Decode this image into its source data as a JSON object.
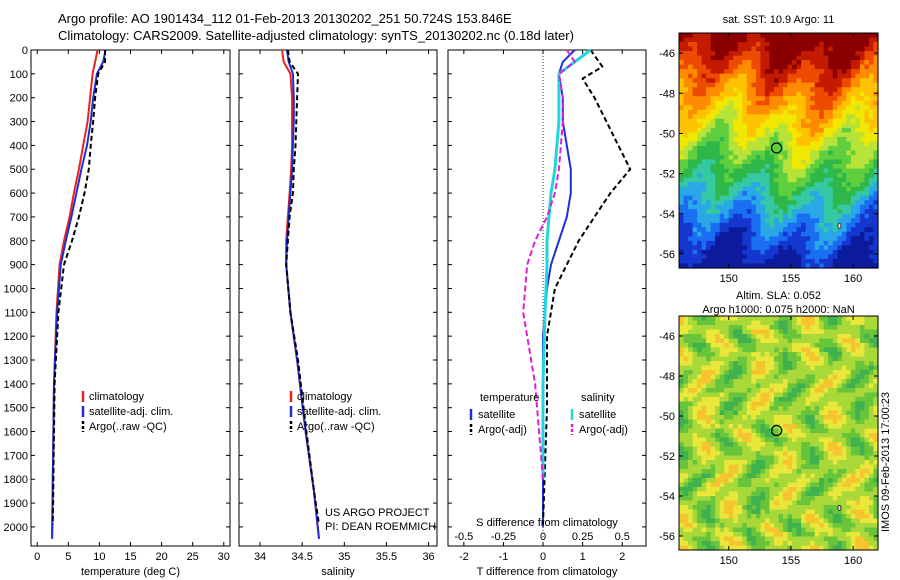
{
  "header": {
    "line1": "Argo profile: AO 1901434_112 01-Feb-2013 20130202_251 50.724S 153.846E",
    "line2": "Climatology: CARS2009. Satellite-adjusted climatology: synTS_20130202.nc (0.18d later)"
  },
  "side_stamp": "IMOS 09-Feb-2013 17:00:23",
  "colors": {
    "climatology": "#e8231a",
    "satellite": "#1f2fd8",
    "argo": "#000000",
    "sal_satellite": "#1fd6e0",
    "sal_argo": "#e01fd6"
  },
  "chart_data": [
    {
      "id": "temperature",
      "type": "line",
      "xlabel": "temperature (deg C)",
      "ylabel": "",
      "xlim": [
        -1,
        31
      ],
      "ylim": [
        2080,
        0
      ],
      "xticks": [
        0,
        5,
        10,
        15,
        20,
        25,
        30
      ],
      "yticks": [
        0,
        100,
        200,
        300,
        400,
        500,
        600,
        700,
        800,
        900,
        1000,
        1100,
        1200,
        1300,
        1400,
        1500,
        1600,
        1700,
        1800,
        1900,
        2000
      ],
      "legend": [
        "climatology",
        "satellite-adj. clim.",
        "Argo(..raw -QC)"
      ],
      "series": [
        {
          "name": "climatology",
          "color": "#e8231a",
          "dash": "none",
          "x": [
            9.7,
            9.3,
            8.9,
            8.5,
            8.1,
            7.4,
            6.7,
            5.9,
            5.2,
            4.3,
            3.6,
            3.1,
            2.7,
            2.5,
            2.4
          ],
          "y": [
            0,
            50,
            100,
            200,
            300,
            400,
            500,
            600,
            700,
            800,
            900,
            1100,
            1400,
            1800,
            2050
          ]
        },
        {
          "name": "satellite-adj. clim.",
          "color": "#1f2fd8",
          "dash": "none",
          "x": [
            11.0,
            10.6,
            9.6,
            9.0,
            8.6,
            8.0,
            7.1,
            6.3,
            5.5,
            4.6,
            3.8,
            3.2,
            2.7,
            2.5,
            2.4
          ],
          "y": [
            0,
            50,
            100,
            200,
            300,
            400,
            500,
            600,
            700,
            800,
            900,
            1100,
            1400,
            1800,
            2050
          ]
        },
        {
          "name": "Argo(..raw -QC)",
          "color": "#000000",
          "dash": "5,3",
          "x": [
            10.9,
            10.9,
            9.8,
            9.3,
            9.0,
            8.6,
            8.3,
            7.6,
            6.7,
            5.6,
            4.3,
            3.4,
            2.8,
            2.6,
            2.5
          ],
          "y": [
            0,
            50,
            100,
            200,
            300,
            400,
            500,
            600,
            700,
            800,
            900,
            1100,
            1400,
            1800,
            1990
          ]
        }
      ]
    },
    {
      "id": "salinity",
      "type": "line",
      "xlabel": "salinity",
      "ylabel": "",
      "xlim": [
        33.75,
        36.1
      ],
      "ylim": [
        2080,
        0
      ],
      "xticks": [
        34,
        34.5,
        35,
        35.5,
        36
      ],
      "legend": [
        "climatology",
        "satellite-adj. clim.",
        "Argo(..raw -QC)"
      ],
      "annotation": [
        "US ARGO PROJECT",
        "PI: DEAN ROEMMICH"
      ],
      "series": [
        {
          "name": "climatology",
          "color": "#e8231a",
          "dash": "none",
          "x": [
            34.26,
            34.28,
            34.36,
            34.38,
            34.38,
            34.38,
            34.37,
            34.35,
            34.33,
            34.31,
            34.31,
            34.36,
            34.44,
            34.54,
            34.64,
            34.7
          ],
          "y": [
            0,
            50,
            100,
            200,
            300,
            400,
            500,
            600,
            700,
            800,
            900,
            1100,
            1300,
            1600,
            1850,
            2050
          ]
        },
        {
          "name": "satellite-adj. clim.",
          "color": "#1f2fd8",
          "dash": "none",
          "x": [
            34.32,
            34.34,
            34.39,
            34.4,
            34.4,
            34.39,
            34.38,
            34.36,
            34.34,
            34.32,
            34.31,
            34.36,
            34.44,
            34.54,
            34.64,
            34.7
          ],
          "y": [
            0,
            50,
            100,
            200,
            300,
            400,
            500,
            600,
            700,
            800,
            900,
            1100,
            1300,
            1600,
            1850,
            2050
          ]
        },
        {
          "name": "Argo(..raw -QC)",
          "color": "#000000",
          "dash": "5,3",
          "x": [
            34.33,
            34.35,
            34.45,
            34.44,
            34.43,
            34.42,
            34.4,
            34.39,
            34.35,
            34.33,
            34.31,
            34.36,
            34.45,
            34.55,
            34.64,
            34.7
          ],
          "y": [
            0,
            50,
            100,
            200,
            300,
            400,
            500,
            600,
            700,
            800,
            900,
            1100,
            1300,
            1600,
            1850,
            1990
          ]
        }
      ]
    },
    {
      "id": "differences",
      "type": "line",
      "xlabel": "T difference from climatology",
      "xlabel_top": "S difference from climatology",
      "xlim": [
        -2.4,
        2.6
      ],
      "ylim": [
        2080,
        0
      ],
      "xticks": [
        -2,
        -1,
        0,
        1,
        2
      ],
      "xticks_s": [
        -0.5,
        -0.25,
        0,
        0.25,
        0.5
      ],
      "legend_temperature_title": "temperature",
      "legend_salinity_title": "salinity",
      "legend_temperature": [
        "satellite",
        "Argo(-adj)"
      ],
      "legend_salinity": [
        "satellite",
        "Argo(-adj)"
      ],
      "series": [
        {
          "name": "satellite",
          "group": "temperature",
          "color": "#1f2fd8",
          "dash": "none",
          "width": 2,
          "x": [
            0.8,
            0.5,
            0.4,
            0.5,
            0.5,
            0.6,
            0.7,
            0.7,
            0.6,
            0.4,
            0.2,
            0.1,
            0.0,
            0.0,
            0.0,
            0.0
          ],
          "y": [
            0,
            50,
            100,
            200,
            300,
            400,
            500,
            600,
            700,
            800,
            900,
            1000,
            1200,
            1500,
            1800,
            2000
          ]
        },
        {
          "name": "Argo(-adj)",
          "group": "temperature",
          "color": "#000000",
          "dash": "5,3",
          "width": 2,
          "x": [
            1.2,
            1.5,
            1.0,
            1.3,
            1.6,
            1.9,
            2.2,
            1.7,
            1.3,
            0.9,
            0.6,
            0.3,
            0.1,
            0.1,
            0.0
          ],
          "y": [
            0,
            70,
            120,
            200,
            300,
            400,
            500,
            600,
            700,
            800,
            900,
            1000,
            1200,
            1500,
            1990
          ]
        },
        {
          "name": "satellite",
          "group": "salinity",
          "color": "#1fd6e0",
          "dash": "none",
          "width": 3,
          "x": [
            1.2,
            0.8,
            0.4,
            0.4,
            0.4,
            0.35,
            0.3,
            0.2,
            0.15,
            0.1,
            0.1,
            0.05,
            0.0,
            0.0
          ],
          "y": [
            0,
            50,
            100,
            200,
            300,
            400,
            500,
            600,
            700,
            800,
            900,
            1100,
            1400,
            1800
          ]
        },
        {
          "name": "Argo(-adj)",
          "group": "salinity",
          "color": "#e01fd6",
          "dash": "6,3",
          "width": 2,
          "x": [
            0.6,
            0.8,
            0.4,
            0.5,
            0.5,
            0.45,
            0.4,
            0.3,
            0.1,
            -0.2,
            -0.4,
            -0.5,
            -0.2,
            0.0
          ],
          "y": [
            0,
            50,
            100,
            200,
            300,
            400,
            500,
            600,
            700,
            800,
            900,
            1100,
            1400,
            1800
          ]
        }
      ]
    },
    {
      "id": "sst_map",
      "type": "heatmap",
      "title": "sat. SST: 10.9 Argo: 11",
      "xlim": [
        146,
        162
      ],
      "ylim": [
        -56.7,
        -45
      ],
      "xticks": [
        150,
        155,
        160
      ],
      "yticks": [
        -46,
        -48,
        -50,
        -52,
        -54,
        -56
      ],
      "marker": {
        "lon": 153.846,
        "lat": -50.724
      }
    },
    {
      "id": "sla_map",
      "type": "heatmap",
      "title_line1": "Altim. SLA: 0.052",
      "title_line2": "Argo h1000: 0.075 h2000: NaN",
      "xlim": [
        146,
        162
      ],
      "ylim": [
        -56.7,
        -45
      ],
      "xticks": [
        150,
        155,
        160
      ],
      "yticks": [
        -46,
        -48,
        -50,
        -52,
        -54,
        -56
      ],
      "marker": {
        "lon": 153.846,
        "lat": -50.724
      }
    }
  ]
}
